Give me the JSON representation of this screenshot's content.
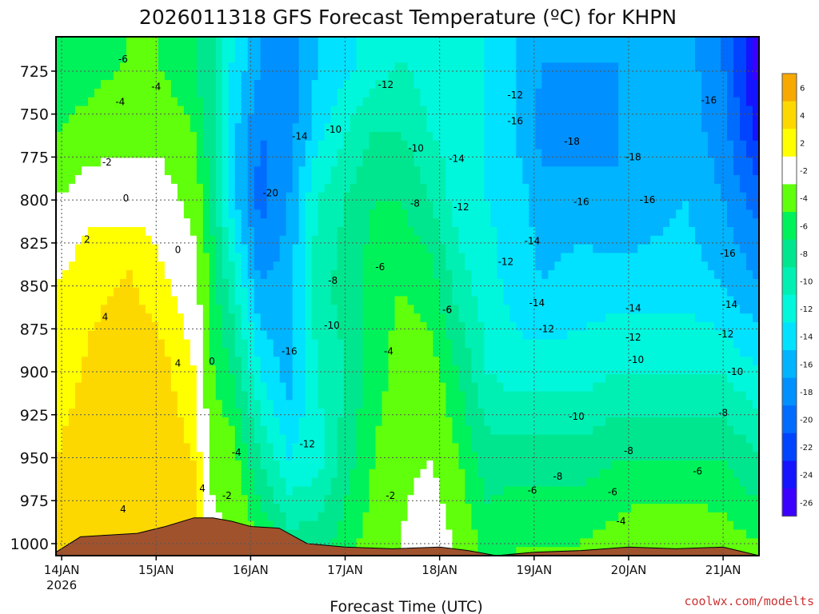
{
  "chart_data": {
    "type": "heatmap",
    "title": "2026011318 GFS Forecast Temperature (ºC) for KHPN",
    "xlabel": "Forecast Time (UTC)",
    "ylabel": "",
    "credit": "coolwx.com/modelts",
    "x_ticks": [
      {
        "label": "14JAN",
        "sub": "2026",
        "day": 0
      },
      {
        "label": "15JAN",
        "sub": "",
        "day": 1
      },
      {
        "label": "16JAN",
        "sub": "",
        "day": 2
      },
      {
        "label": "17JAN",
        "sub": "",
        "day": 3
      },
      {
        "label": "18JAN",
        "sub": "",
        "day": 4
      },
      {
        "label": "19JAN",
        "sub": "",
        "day": 5
      },
      {
        "label": "20JAN",
        "sub": "",
        "day": 6
      },
      {
        "label": "21JAN",
        "sub": "",
        "day": 7
      }
    ],
    "x_range_days": [
      -0.06,
      7.38
    ],
    "y_axis": "pressure (hPa), inverted",
    "y_ticks": [
      725,
      750,
      775,
      800,
      825,
      850,
      875,
      900,
      925,
      950,
      975,
      1000
    ],
    "y_range": [
      1007,
      705
    ],
    "grid": true,
    "colorbar": {
      "placement": "right",
      "levels": [
        "6",
        "4",
        "2",
        "-2",
        "-4",
        "-6",
        "-8",
        "-10",
        "-12",
        "-14",
        "-16",
        "-18",
        "-20",
        "-22",
        "-24",
        "-26"
      ],
      "colors": [
        "#f7a900",
        "#fdd800",
        "#ffff00",
        "#ffffff",
        "#60ff0c",
        "#00f25a",
        "#00e68e",
        "#00f0b4",
        "#00f7dc",
        "#00e2ff",
        "#00b4ff",
        "#0090ff",
        "#006cff",
        "#0044ff",
        "#1414ff",
        "#3c00ff"
      ]
    },
    "terrain_color": "#a0522d",
    "temperature_profiles": [
      {
        "day": -0.06,
        "points": [
          [
            720,
            -7
          ],
          [
            760,
            -5
          ],
          [
            800,
            -2
          ],
          [
            850,
            1
          ],
          [
            900,
            2
          ],
          [
            950,
            3
          ],
          [
            1000,
            3
          ]
        ]
      },
      {
        "day": 0.3,
        "points": [
          [
            720,
            -6
          ],
          [
            760,
            -4
          ],
          [
            790,
            -1
          ],
          [
            830,
            2
          ],
          [
            880,
            3
          ],
          [
            940,
            4
          ],
          [
            1000,
            4
          ]
        ]
      },
      {
        "day": 0.7,
        "points": [
          [
            720,
            -5
          ],
          [
            760,
            -3
          ],
          [
            800,
            0
          ],
          [
            840,
            3
          ],
          [
            880,
            4
          ],
          [
            950,
            5
          ],
          [
            1000,
            4
          ]
        ]
      },
      {
        "day": 1.0,
        "points": [
          [
            720,
            -5
          ],
          [
            760,
            -3
          ],
          [
            800,
            0
          ],
          [
            850,
            2
          ],
          [
            890,
            4
          ],
          [
            950,
            5
          ],
          [
            1000,
            5
          ]
        ]
      },
      {
        "day": 1.4,
        "points": [
          [
            720,
            -7
          ],
          [
            760,
            -5
          ],
          [
            800,
            -3
          ],
          [
            840,
            -1
          ],
          [
            900,
            1
          ],
          [
            950,
            3
          ],
          [
            1000,
            4
          ]
        ]
      },
      {
        "day": 1.6,
        "points": [
          [
            720,
            -9
          ],
          [
            760,
            -9
          ],
          [
            800,
            -8
          ],
          [
            850,
            -6
          ],
          [
            900,
            -5
          ],
          [
            950,
            -3
          ],
          [
            1000,
            -1
          ]
        ]
      },
      {
        "day": 1.8,
        "points": [
          [
            720,
            -13
          ],
          [
            760,
            -14
          ],
          [
            800,
            -14
          ],
          [
            850,
            -10
          ],
          [
            900,
            -7
          ],
          [
            950,
            -4
          ],
          [
            1000,
            -2
          ]
        ]
      },
      {
        "day": 2.1,
        "points": [
          [
            720,
            -17
          ],
          [
            760,
            -19
          ],
          [
            800,
            -20
          ],
          [
            850,
            -17
          ],
          [
            900,
            -13
          ],
          [
            950,
            -9
          ],
          [
            1000,
            -5
          ]
        ]
      },
      {
        "day": 2.4,
        "points": [
          [
            720,
            -18
          ],
          [
            760,
            -18
          ],
          [
            800,
            -17
          ],
          [
            850,
            -16
          ],
          [
            900,
            -16
          ],
          [
            950,
            -13
          ],
          [
            1000,
            -8
          ]
        ]
      },
      {
        "day": 2.7,
        "points": [
          [
            720,
            -15
          ],
          [
            760,
            -14
          ],
          [
            800,
            -11
          ],
          [
            850,
            -10
          ],
          [
            900,
            -11
          ],
          [
            950,
            -12
          ],
          [
            1000,
            -8
          ]
        ]
      },
      {
        "day": 3.0,
        "points": [
          [
            720,
            -14
          ],
          [
            760,
            -11
          ],
          [
            800,
            -9
          ],
          [
            850,
            -8
          ],
          [
            900,
            -9
          ],
          [
            950,
            -8
          ],
          [
            1000,
            -6
          ]
        ]
      },
      {
        "day": 3.3,
        "points": [
          [
            720,
            -12
          ],
          [
            760,
            -9
          ],
          [
            800,
            -7
          ],
          [
            850,
            -6
          ],
          [
            900,
            -6
          ],
          [
            950,
            -5
          ],
          [
            1000,
            -4
          ]
        ]
      },
      {
        "day": 3.6,
        "points": [
          [
            720,
            -11
          ],
          [
            760,
            -9
          ],
          [
            800,
            -7
          ],
          [
            850,
            -5
          ],
          [
            900,
            -4
          ],
          [
            950,
            -3
          ],
          [
            1000,
            -2
          ]
        ]
      },
      {
        "day": 3.9,
        "points": [
          [
            720,
            -12
          ],
          [
            760,
            -11
          ],
          [
            800,
            -9
          ],
          [
            850,
            -6
          ],
          [
            900,
            -4
          ],
          [
            950,
            -2
          ],
          [
            1000,
            1
          ]
        ]
      },
      {
        "day": 4.2,
        "points": [
          [
            720,
            -12
          ],
          [
            760,
            -12
          ],
          [
            800,
            -12
          ],
          [
            850,
            -10
          ],
          [
            900,
            -7
          ],
          [
            950,
            -5
          ],
          [
            1000,
            -3
          ]
        ]
      },
      {
        "day": 4.5,
        "points": [
          [
            720,
            -13
          ],
          [
            760,
            -13
          ],
          [
            800,
            -13
          ],
          [
            850,
            -12
          ],
          [
            900,
            -11
          ],
          [
            950,
            -8
          ],
          [
            1000,
            -6
          ]
        ]
      },
      {
        "day": 4.8,
        "points": [
          [
            720,
            -15
          ],
          [
            760,
            -15
          ],
          [
            800,
            -14
          ],
          [
            850,
            -14
          ],
          [
            900,
            -12
          ],
          [
            950,
            -8
          ],
          [
            1000,
            -5
          ]
        ]
      },
      {
        "day": 5.1,
        "points": [
          [
            720,
            -17
          ],
          [
            760,
            -18
          ],
          [
            800,
            -16
          ],
          [
            850,
            -15
          ],
          [
            900,
            -12
          ],
          [
            950,
            -8
          ],
          [
            1000,
            -5
          ]
        ]
      },
      {
        "day": 5.5,
        "points": [
          [
            720,
            -17
          ],
          [
            760,
            -18
          ],
          [
            800,
            -16
          ],
          [
            850,
            -14
          ],
          [
            900,
            -12
          ],
          [
            950,
            -8
          ],
          [
            1000,
            -5
          ]
        ]
      },
      {
        "day": 5.9,
        "points": [
          [
            720,
            -17
          ],
          [
            760,
            -17
          ],
          [
            800,
            -17
          ],
          [
            850,
            -14
          ],
          [
            900,
            -11
          ],
          [
            950,
            -7
          ],
          [
            1000,
            -4
          ]
        ]
      },
      {
        "day": 6.2,
        "points": [
          [
            720,
            -17
          ],
          [
            760,
            -17
          ],
          [
            800,
            -16
          ],
          [
            850,
            -14
          ],
          [
            900,
            -11
          ],
          [
            950,
            -7
          ],
          [
            1000,
            -3
          ]
        ]
      },
      {
        "day": 6.6,
        "points": [
          [
            720,
            -16
          ],
          [
            760,
            -16
          ],
          [
            800,
            -15
          ],
          [
            850,
            -14
          ],
          [
            900,
            -11
          ],
          [
            950,
            -7
          ],
          [
            1000,
            -3
          ]
        ]
      },
      {
        "day": 7.0,
        "points": [
          [
            720,
            -19
          ],
          [
            760,
            -18
          ],
          [
            800,
            -17
          ],
          [
            850,
            -15
          ],
          [
            900,
            -11
          ],
          [
            950,
            -7
          ],
          [
            1000,
            -4
          ]
        ]
      },
      {
        "day": 7.38,
        "points": [
          [
            720,
            -26
          ],
          [
            760,
            -24
          ],
          [
            800,
            -20
          ],
          [
            850,
            -17
          ],
          [
            900,
            -13
          ],
          [
            950,
            -9
          ],
          [
            1000,
            -5
          ]
        ]
      }
    ],
    "terrain_profile": [
      {
        "day": -0.06,
        "p": 1005
      },
      {
        "day": 0.2,
        "p": 996
      },
      {
        "day": 0.5,
        "p": 995
      },
      {
        "day": 0.8,
        "p": 994
      },
      {
        "day": 1.1,
        "p": 990
      },
      {
        "day": 1.4,
        "p": 985
      },
      {
        "day": 1.6,
        "p": 985
      },
      {
        "day": 1.8,
        "p": 987
      },
      {
        "day": 2.0,
        "p": 990
      },
      {
        "day": 2.3,
        "p": 991
      },
      {
        "day": 2.6,
        "p": 1000
      },
      {
        "day": 3.0,
        "p": 1002
      },
      {
        "day": 3.5,
        "p": 1003
      },
      {
        "day": 4.0,
        "p": 1002
      },
      {
        "day": 4.3,
        "p": 1004
      },
      {
        "day": 4.6,
        "p": 1007
      },
      {
        "day": 5.0,
        "p": 1005
      },
      {
        "day": 5.5,
        "p": 1004
      },
      {
        "day": 6.0,
        "p": 1002
      },
      {
        "day": 6.5,
        "p": 1003
      },
      {
        "day": 7.0,
        "p": 1002
      },
      {
        "day": 7.38,
        "p": 1007
      }
    ],
    "contour_labels": [
      {
        "text": "-6",
        "day": 0.65,
        "p": 718
      },
      {
        "text": "-4",
        "day": 1.0,
        "p": 734
      },
      {
        "text": "-4",
        "day": 0.62,
        "p": 743
      },
      {
        "text": "-2",
        "day": 0.48,
        "p": 778
      },
      {
        "text": "0",
        "day": 0.68,
        "p": 799
      },
      {
        "text": "2",
        "day": 0.27,
        "p": 823
      },
      {
        "text": "0",
        "day": 1.23,
        "p": 829
      },
      {
        "text": "4",
        "day": 0.46,
        "p": 868
      },
      {
        "text": "0",
        "day": 1.59,
        "p": 894
      },
      {
        "text": "4",
        "day": 1.23,
        "p": 895
      },
      {
        "text": "4",
        "day": 1.49,
        "p": 968
      },
      {
        "text": "4",
        "day": 0.65,
        "p": 980
      },
      {
        "text": "-4",
        "day": 1.85,
        "p": 947
      },
      {
        "text": "-2",
        "day": 1.75,
        "p": 972
      },
      {
        "text": "-14",
        "day": 2.52,
        "p": 763
      },
      {
        "text": "-10",
        "day": 2.88,
        "p": 759
      },
      {
        "text": "-12",
        "day": 3.43,
        "p": 733
      },
      {
        "text": "-10",
        "day": 3.75,
        "p": 770
      },
      {
        "text": "-14",
        "day": 4.18,
        "p": 776
      },
      {
        "text": "-12",
        "day": 4.8,
        "p": 739
      },
      {
        "text": "-20",
        "day": 2.21,
        "p": 796
      },
      {
        "text": "-8",
        "day": 3.74,
        "p": 802
      },
      {
        "text": "-12",
        "day": 4.23,
        "p": 804
      },
      {
        "text": "-8",
        "day": 2.87,
        "p": 847
      },
      {
        "text": "-6",
        "day": 3.37,
        "p": 839
      },
      {
        "text": "-6",
        "day": 4.08,
        "p": 864
      },
      {
        "text": "-14",
        "day": 4.98,
        "p": 824
      },
      {
        "text": "-12",
        "day": 4.7,
        "p": 836
      },
      {
        "text": "-10",
        "day": 2.86,
        "p": 873
      },
      {
        "text": "-16",
        "day": 2.41,
        "p": 888
      },
      {
        "text": "-4",
        "day": 3.46,
        "p": 888
      },
      {
        "text": "-12",
        "day": 2.6,
        "p": 942
      },
      {
        "text": "-2",
        "day": 3.48,
        "p": 972
      },
      {
        "text": "-16",
        "day": 4.8,
        "p": 754
      },
      {
        "text": "-18",
        "day": 5.4,
        "p": 766
      },
      {
        "text": "-18",
        "day": 6.05,
        "p": 775
      },
      {
        "text": "-16",
        "day": 6.85,
        "p": 742
      },
      {
        "text": "-16",
        "day": 5.5,
        "p": 801
      },
      {
        "text": "-16",
        "day": 6.2,
        "p": 800
      },
      {
        "text": "-16",
        "day": 7.05,
        "p": 831
      },
      {
        "text": "-14",
        "day": 5.03,
        "p": 860
      },
      {
        "text": "-14",
        "day": 6.05,
        "p": 863
      },
      {
        "text": "-14",
        "day": 7.07,
        "p": 861
      },
      {
        "text": "-12",
        "day": 5.13,
        "p": 875
      },
      {
        "text": "-12",
        "day": 6.05,
        "p": 880
      },
      {
        "text": "-12",
        "day": 7.03,
        "p": 878
      },
      {
        "text": "-10",
        "day": 6.08,
        "p": 893
      },
      {
        "text": "-10",
        "day": 7.13,
        "p": 900
      },
      {
        "text": "-10",
        "day": 5.45,
        "p": 926
      },
      {
        "text": "-8",
        "day": 6.0,
        "p": 946
      },
      {
        "text": "-8",
        "day": 7.0,
        "p": 924
      },
      {
        "text": "-8",
        "day": 5.25,
        "p": 961
      },
      {
        "text": "-6",
        "day": 4.98,
        "p": 969
      },
      {
        "text": "-6",
        "day": 5.83,
        "p": 970
      },
      {
        "text": "-6",
        "day": 6.73,
        "p": 958
      },
      {
        "text": "-4",
        "day": 5.92,
        "p": 987
      },
      {
        "text": "-6",
        "day": 4.08,
        "p": 864
      }
    ]
  }
}
